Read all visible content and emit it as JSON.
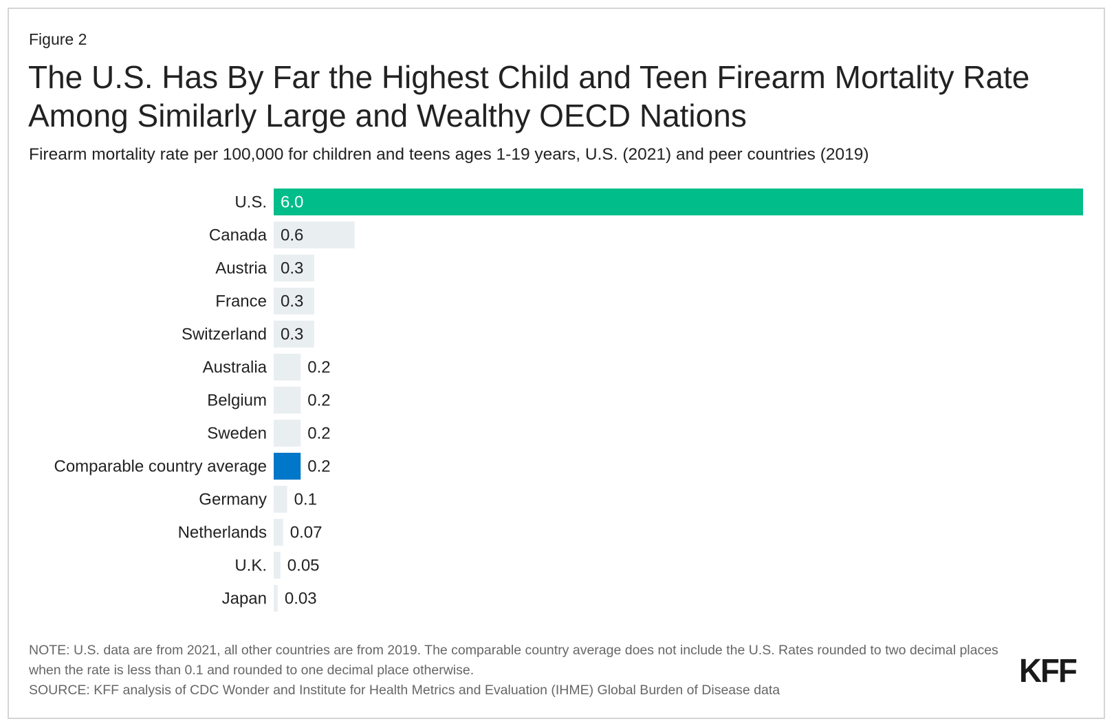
{
  "figure_label": "Figure 2",
  "chart_data": {
    "type": "bar",
    "orientation": "horizontal",
    "title": "The U.S. Has By Far the Highest Child and Teen Firearm Mortality Rate Among Similarly Large and Wealthy OECD Nations",
    "subtitle": "Firearm mortality rate per 100,000 for children and teens ages 1-19 years, U.S. (2021) and peer countries (2019)",
    "categories": [
      "U.S.",
      "Canada",
      "Austria",
      "France",
      "Switzerland",
      "Australia",
      "Belgium",
      "Sweden",
      "Comparable country average",
      "Germany",
      "Netherlands",
      "U.K.",
      "Japan"
    ],
    "values": [
      6.0,
      0.6,
      0.3,
      0.3,
      0.3,
      0.2,
      0.2,
      0.2,
      0.2,
      0.1,
      0.07,
      0.05,
      0.03
    ],
    "labels": [
      "6.0",
      "0.6",
      "0.3",
      "0.3",
      "0.3",
      "0.2",
      "0.2",
      "0.2",
      "0.2",
      "0.1",
      "0.07",
      "0.05",
      "0.03"
    ],
    "highlight": {
      "U.S.": "#00bd8a",
      "Comparable country average": "#0077c8"
    },
    "default_color": "#e9eef1",
    "xlim": [
      0,
      6.0
    ],
    "grid": false,
    "xlabel": "",
    "ylabel": ""
  },
  "notes": {
    "note": "NOTE: U.S. data are from 2021, all other countries are from 2019. The comparable country average does not include the U.S. Rates rounded to two decimal places when the rate is less than 0.1 and rounded to one decimal place otherwise.",
    "source": "SOURCE: KFF analysis of CDC Wonder and Institute for Health Metrics and Evaluation (IHME) Global Burden of Disease data"
  },
  "logo": "KFF"
}
